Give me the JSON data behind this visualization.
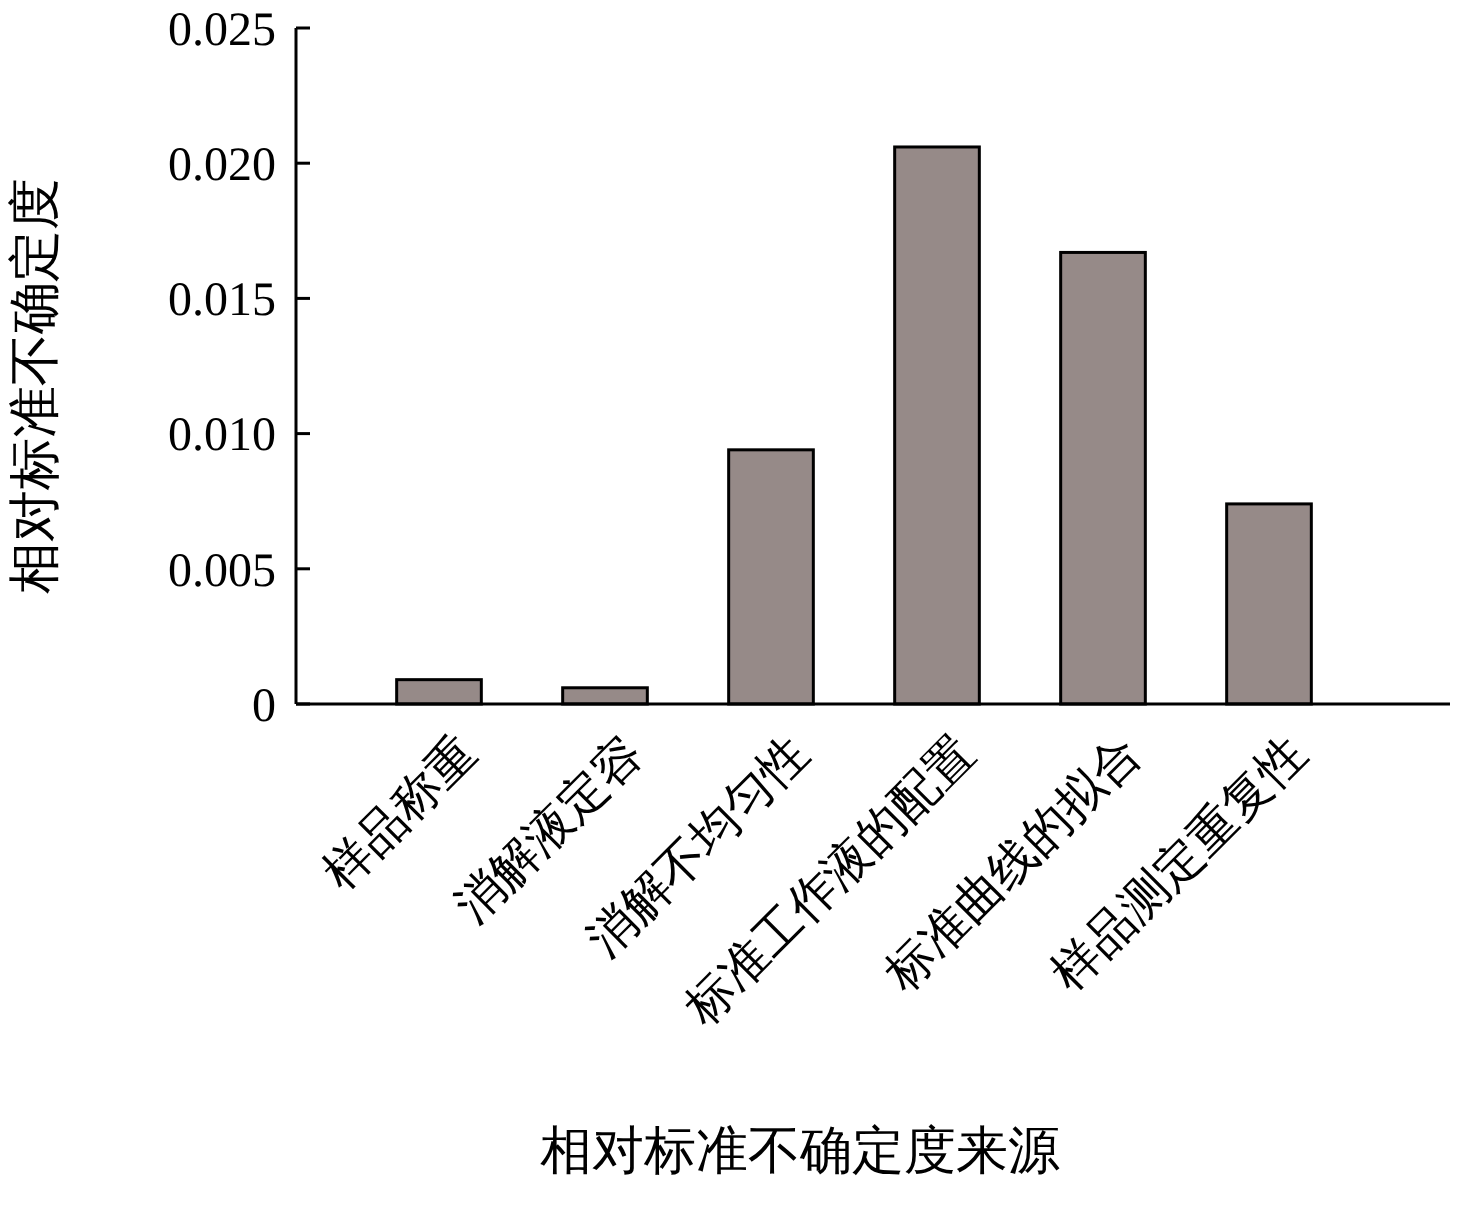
{
  "chart_data": {
    "type": "bar",
    "xlabel": "相对标准不确定度来源",
    "ylabel": "相对标准不确定度",
    "categories": [
      "样品称重",
      "消解液定容",
      "消解不均匀性",
      "标准工作液的配置",
      "标准曲线的拟合",
      "样品测定重复性"
    ],
    "values": [
      0.0009,
      0.0006,
      0.0094,
      0.0206,
      0.0167,
      0.0074
    ],
    "color": "#968a88",
    "ylim": [
      0,
      0.025
    ],
    "yticks": [
      0,
      0.005,
      {
        "value": 0.01,
        "label": "0.010"
      },
      0.015,
      {
        "value": 0.02,
        "label": "0.020"
      },
      0.025
    ],
    "grid": false
  }
}
